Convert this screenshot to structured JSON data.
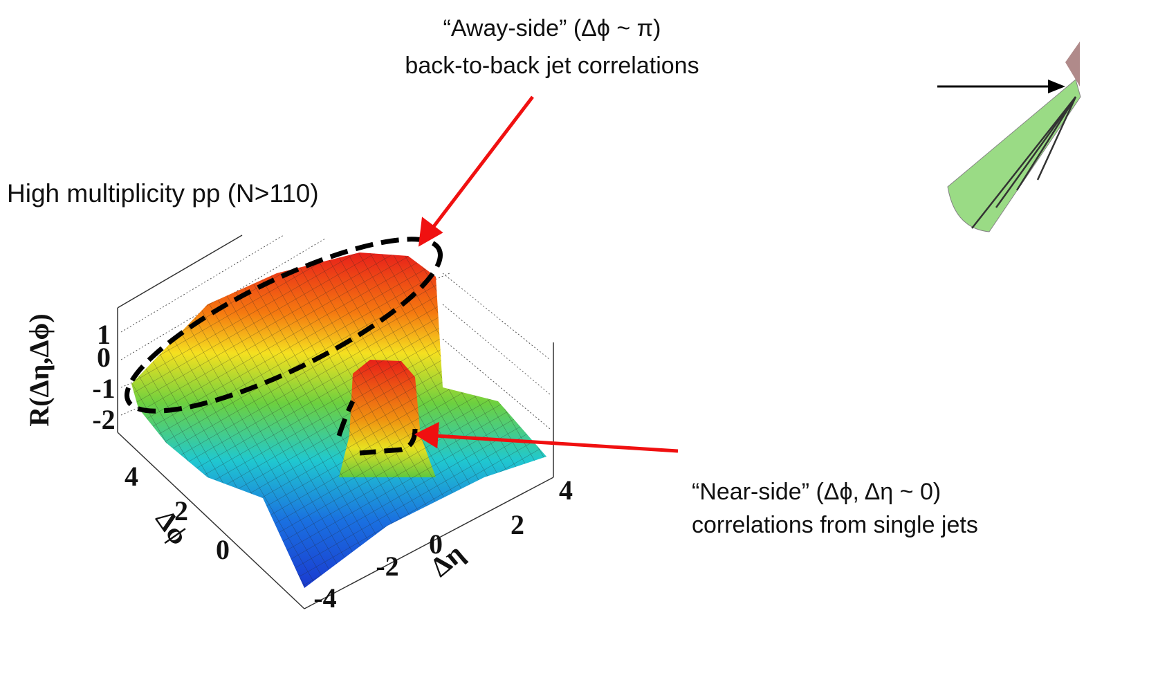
{
  "annotations": {
    "away_side": {
      "line1": "“Away-side” (Δϕ ~ π)",
      "line2": "back-to-back jet correlations"
    },
    "near_side": {
      "line1": "“Near-side” (Δϕ, Δη ~ 0)",
      "line2": "correlations from single jets"
    },
    "plot_label": "High multiplicity pp (N>110)"
  },
  "plot": {
    "z_label": "R(Δη,Δϕ)",
    "z_ticks": [
      "1",
      "0",
      "-1",
      "-2"
    ],
    "phi_label": "Δϕ",
    "phi_ticks": [
      "4",
      "2",
      "0"
    ],
    "eta_label": "Δη",
    "eta_ticks": [
      "4",
      "2",
      "0",
      "-2",
      "-4"
    ]
  }
}
